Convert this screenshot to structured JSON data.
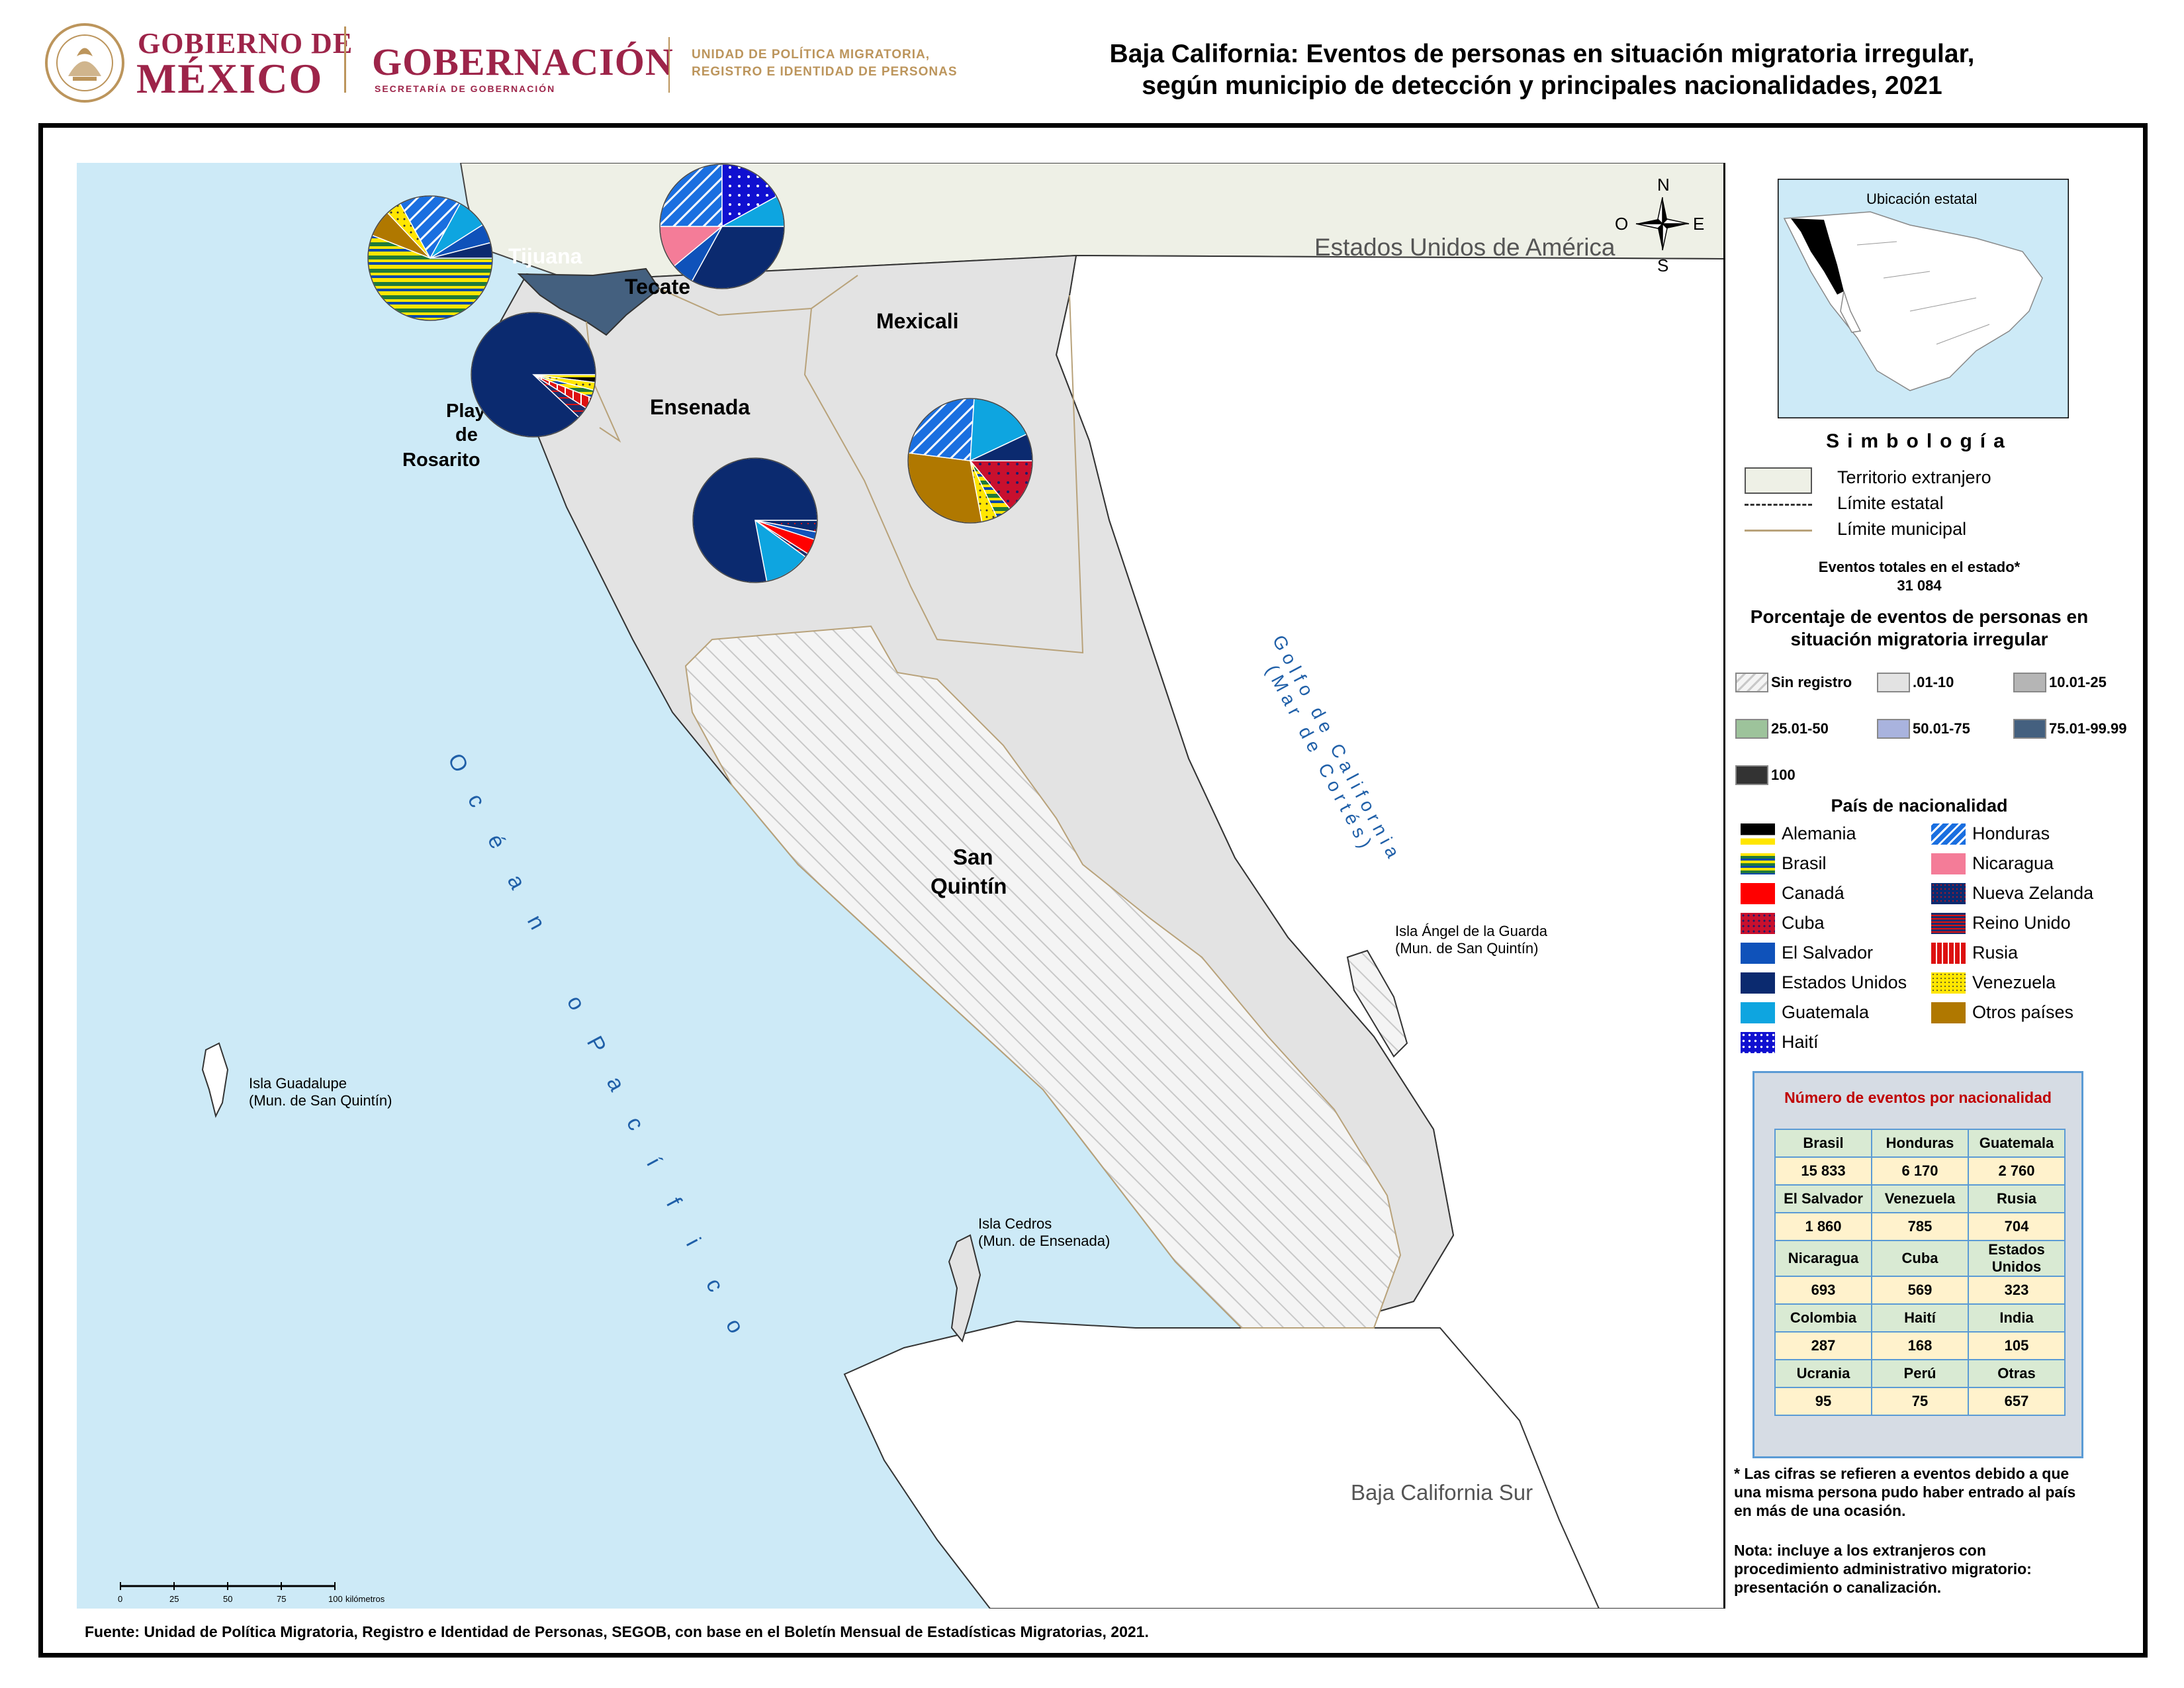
{
  "header": {
    "gov_line1": "GOBIERNO DE",
    "gov_line2": "MÉXICO",
    "gob_title": "GOBERNACIÓN",
    "gob_subtitle": "SECRETARÍA DE GOBERNACIÓN",
    "unit_line1": "UNIDAD DE POLÍTICA MIGRATORIA,",
    "unit_line2": "REGISTRO E IDENTIDAD DE PERSONAS",
    "seal_text": "ESTADOS UNIDOS MEXICANOS"
  },
  "title": {
    "line1": "Baja California: Eventos de personas en situación migratoria irregular,",
    "line2": "según municipio de detección y principales nacionalidades, 2021"
  },
  "map": {
    "foreign_country": "Estados Unidos de América",
    "neighbor_state": "Baja California Sur",
    "ocean": [
      "O",
      "c",
      "é",
      "a",
      "n",
      "o",
      "P",
      "a",
      "c",
      "í",
      "f",
      "i",
      "c",
      "o"
    ],
    "gulf_line1": "Golfo de California",
    "gulf_line2": "(Mar de Cortés)",
    "municipalities": {
      "tijuana": "Tijuana",
      "tecate": "Tecate",
      "mexicali": "Mexicali",
      "ensenada": "Ensenada",
      "rosarito_1": "Playas",
      "rosarito_2": "de",
      "rosarito_3": "Rosarito",
      "sanquintin_1": "San",
      "sanquintin_2": "Quintín"
    },
    "islands": {
      "guadalupe_1": "Isla Guadalupe",
      "guadalupe_2": "(Mun. de San Quintín)",
      "cedros_1": "Isla Cedros",
      "cedros_2": "(Mun. de Ensenada)",
      "angel_1": "Isla Ángel de la Guarda",
      "angel_2": "(Mun. de San Quintín)"
    },
    "compass": {
      "n": "N",
      "s": "S",
      "e": "E",
      "o": "O"
    },
    "scale": {
      "ticks": [
        "0",
        "25",
        "50",
        "75",
        "100"
      ],
      "unit": "kilómetros"
    },
    "municipality_class": {
      "tijuana": "75.01-99.99",
      "tecate": ".01-10",
      "mexicali": ".01-10",
      "ensenada": ".01-10",
      "playas_de_rosarito": ".01-10",
      "san_quintin": "Sin registro"
    }
  },
  "legend": {
    "inset_title": "Ubicación estatal",
    "simbologia": "Simbología",
    "foreign": "Territorio extranjero",
    "state_limit": "Límite estatal",
    "municipal_limit": "Límite municipal",
    "total_label": "Eventos totales en el estado*",
    "total_value": "31 084",
    "pct_title_1": "Porcentaje de eventos de personas en",
    "pct_title_2": "situación migratoria irregular",
    "classes": [
      {
        "label": "Sin registro",
        "color": "#f2f2f2"
      },
      {
        "label": ".01-10",
        "color": "#e3e3e3"
      },
      {
        "label": "10.01-25",
        "color": "#b5b5b5"
      },
      {
        "label": "25.01-50",
        "color": "#9dc39b"
      },
      {
        "label": "50.01-75",
        "color": "#a9b3de"
      },
      {
        "label": "75.01-99.99",
        "color": "#44607f"
      },
      {
        "label": "100",
        "color": "#333333"
      }
    ],
    "nationality_title": "País de nacionalidad",
    "nationalities_left": [
      {
        "label": "Alemania",
        "color": "#000000",
        "pattern": "alemania"
      },
      {
        "label": "Brasil",
        "color": "#1f7a3a",
        "pattern": "brasil"
      },
      {
        "label": "Canadá",
        "color": "#ff0000",
        "pattern": "solid"
      },
      {
        "label": "Cuba",
        "color": "#c8102e",
        "pattern": "cuba"
      },
      {
        "label": "El Salvador",
        "color": "#0f52ba",
        "pattern": "solid"
      },
      {
        "label": "Estados Unidos",
        "color": "#0b2a6f",
        "pattern": "solid"
      },
      {
        "label": "Guatemala",
        "color": "#0ea5e0",
        "pattern": "solid"
      },
      {
        "label": "Haití",
        "color": "#0000cc",
        "pattern": "haiti"
      }
    ],
    "nationalities_right": [
      {
        "label": "Honduras",
        "color": "#1a6fe0",
        "pattern": "honduras"
      },
      {
        "label": "Nicaragua",
        "color": "#f47c98",
        "pattern": "solid"
      },
      {
        "label": "Nueva Zelanda",
        "color": "#0b2a6f",
        "pattern": "nz"
      },
      {
        "label": "Reino Unido",
        "color": "#1c2d6b",
        "pattern": "ru"
      },
      {
        "label": "Rusia",
        "color": "#d11",
        "pattern": "rusia"
      },
      {
        "label": "Venezuela",
        "color": "#ffe600",
        "pattern": "venezuela"
      },
      {
        "label": "Otros países",
        "color": "#b07800",
        "pattern": "solid"
      }
    ]
  },
  "events_table": {
    "title": "Número de eventos por nacionalidad",
    "rows": [
      {
        "names": [
          "Brasil",
          "Honduras",
          "Guatemala"
        ],
        "values": [
          "15 833",
          "6 170",
          "2 760"
        ]
      },
      {
        "names": [
          "El Salvador",
          "Venezuela",
          "Rusia"
        ],
        "values": [
          "1 860",
          "785",
          "704"
        ]
      },
      {
        "names": [
          "Nicaragua",
          "Cuba",
          "Estados Unidos"
        ],
        "values": [
          "693",
          "569",
          "323"
        ]
      },
      {
        "names": [
          "Colombia",
          "Haití",
          "India"
        ],
        "values": [
          "287",
          "168",
          "105"
        ]
      },
      {
        "names": [
          "Ucrania",
          "Perú",
          "Otras"
        ],
        "values": [
          "95",
          "75",
          "657"
        ]
      }
    ]
  },
  "notes": {
    "asterisk": "* Las cifras se refieren a eventos debido a que una misma persona pudo haber entrado al país en más de una ocasión.",
    "nota": "Nota: incluye a los extranjeros con procedimiento administrativo migratorio: presentación o canalización."
  },
  "source": "Fuente: Unidad de Política Migratoria, Registro e Identidad de Personas, SEGOB, con base en el Boletín Mensual de Estadísticas Migratorias, 2021.",
  "pies": [
    {
      "municipality": "Tijuana",
      "slices": [
        {
          "nat": "Brasil",
          "pct": 0.56,
          "pattern": "brasil"
        },
        {
          "nat": "Otros países",
          "pct": 0.07,
          "pattern": "otros"
        },
        {
          "nat": "Venezuela",
          "pct": 0.04,
          "pattern": "venezuela"
        },
        {
          "nat": "Honduras",
          "pct": 0.16,
          "pattern": "honduras"
        },
        {
          "nat": "Guatemala",
          "pct": 0.08,
          "pattern": "guatemala"
        },
        {
          "nat": "El Salvador",
          "pct": 0.05,
          "pattern": "elsalvador"
        },
        {
          "nat": "Estados Unidos",
          "pct": 0.04,
          "pattern": "eeuu"
        }
      ]
    },
    {
      "municipality": "Tecate",
      "slices": [
        {
          "nat": "Estados Unidos",
          "pct": 0.33,
          "pattern": "eeuu"
        },
        {
          "nat": "El Salvador",
          "pct": 0.06,
          "pattern": "elsalvador"
        },
        {
          "nat": "Nicaragua",
          "pct": 0.11,
          "pattern": "nicaragua"
        },
        {
          "nat": "Honduras",
          "pct": 0.25,
          "pattern": "honduras"
        },
        {
          "nat": "Haití",
          "pct": 0.17,
          "pattern": "haiti"
        },
        {
          "nat": "Guatemala",
          "pct": 0.08,
          "pattern": "guatemala"
        }
      ]
    },
    {
      "municipality": "Playas de Rosarito",
      "slices": [
        {
          "nat": "Alemania",
          "pct": 0.02,
          "pattern": "alemania"
        },
        {
          "nat": "Venezuela",
          "pct": 0.02,
          "pattern": "venezuela"
        },
        {
          "nat": "Brasil",
          "pct": 0.02,
          "pattern": "brasil"
        },
        {
          "nat": "Rusia",
          "pct": 0.03,
          "pattern": "rusia"
        },
        {
          "nat": "Reino Unido",
          "pct": 0.03,
          "pattern": "ru"
        },
        {
          "nat": "Estados Unidos",
          "pct": 0.88,
          "pattern": "eeuu"
        }
      ]
    },
    {
      "municipality": "Mexicali",
      "slices": [
        {
          "nat": "Cuba",
          "pct": 0.14,
          "pattern": "cuba"
        },
        {
          "nat": "Brasil",
          "pct": 0.04,
          "pattern": "brasil"
        },
        {
          "nat": "Venezuela",
          "pct": 0.04,
          "pattern": "venezuela"
        },
        {
          "nat": "Otros países",
          "pct": 0.3,
          "pattern": "otros"
        },
        {
          "nat": "Honduras",
          "pct": 0.24,
          "pattern": "honduras"
        },
        {
          "nat": "Guatemala",
          "pct": 0.17,
          "pattern": "guatemala"
        },
        {
          "nat": "Estados Unidos",
          "pct": 0.07,
          "pattern": "eeuu"
        }
      ]
    },
    {
      "municipality": "Ensenada",
      "slices": [
        {
          "nat": "Nueva Zelanda",
          "pct": 0.03,
          "pattern": "nz"
        },
        {
          "nat": "El Salvador",
          "pct": 0.02,
          "pattern": "elsalvador"
        },
        {
          "nat": "Canadá",
          "pct": 0.04,
          "pattern": "canada"
        },
        {
          "nat": "Reino Unido",
          "pct": 0.01,
          "pattern": "ru"
        },
        {
          "nat": "Guatemala",
          "pct": 0.12,
          "pattern": "guatemala"
        },
        {
          "nat": "Estados Unidos",
          "pct": 0.78,
          "pattern": "eeuu"
        }
      ]
    }
  ]
}
